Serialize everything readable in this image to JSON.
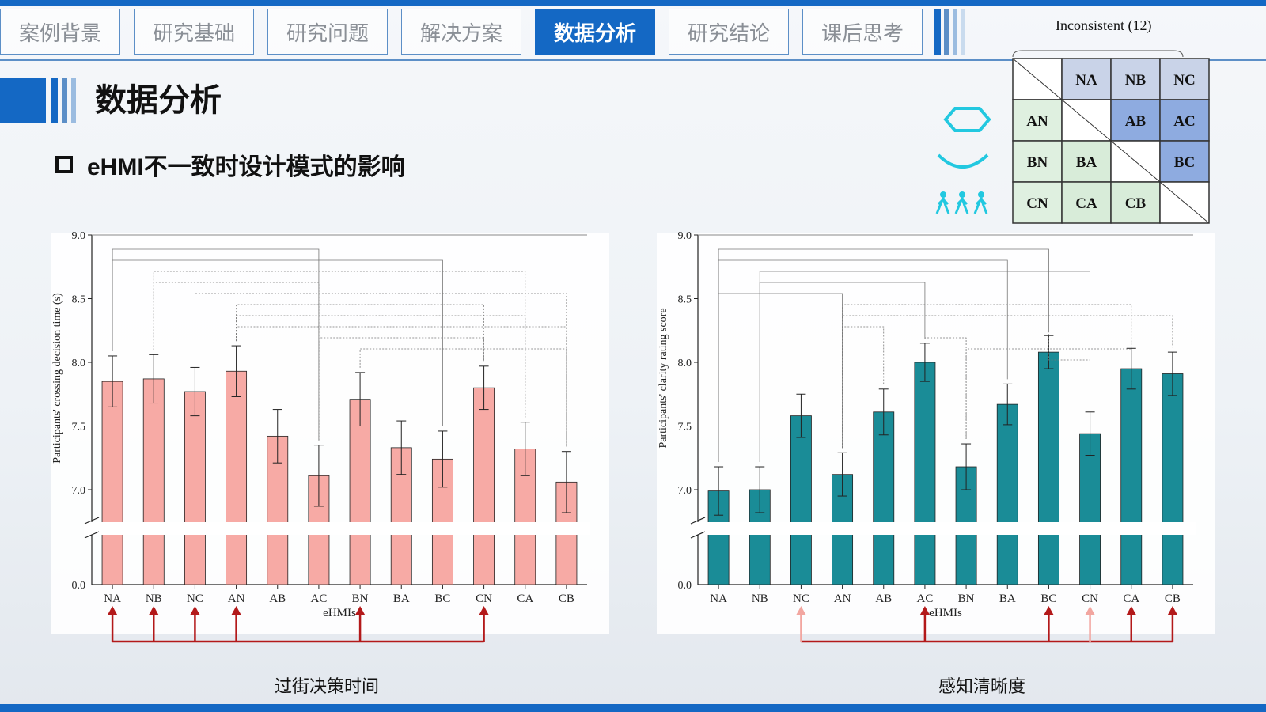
{
  "nav": {
    "tabs": [
      "案例背景",
      "研究基础",
      "研究问题",
      "解决方案",
      "数据分析",
      "研究结论",
      "课后思考"
    ],
    "active_index": 4
  },
  "page": {
    "title": "数据分析",
    "subtitle": "eHMI不一致时设计模式的影响"
  },
  "matrix": {
    "title": "Inconsistent",
    "count": "(12)",
    "col_headers": [
      "NA",
      "NB",
      "NC"
    ],
    "rows": [
      {
        "icon": "hexagon-icon",
        "label": "AN",
        "cells": [
          "",
          "AB",
          "AC"
        ]
      },
      {
        "icon": "smile-arc-icon",
        "label": "BN",
        "cells": [
          "BA",
          "",
          "BC"
        ]
      },
      {
        "icon": "pedestrians-icon",
        "label": "CN",
        "cells": [
          "CA",
          "CB",
          ""
        ]
      }
    ],
    "colors": {
      "header": "#c9d3e8",
      "lower": "#d8ecd9",
      "upper": "#8eabe0",
      "row_header": "#dff0e0"
    }
  },
  "chart_data": [
    {
      "type": "bar",
      "categories": [
        "NA",
        "NB",
        "NC",
        "AN",
        "AB",
        "AC",
        "BN",
        "BA",
        "BC",
        "CN",
        "CA",
        "CB"
      ],
      "values": [
        7.85,
        7.87,
        7.77,
        7.93,
        7.42,
        7.11,
        7.71,
        7.33,
        7.24,
        7.8,
        7.32,
        7.06
      ],
      "errors": [
        0.2,
        0.19,
        0.19,
        0.2,
        0.21,
        0.24,
        0.21,
        0.21,
        0.22,
        0.17,
        0.21,
        0.24
      ],
      "xlabel": "eHMIs",
      "ylabel": "Participants' crossing decision time (s)",
      "ylim": [
        6.7,
        9.0
      ],
      "axis_break": true,
      "yticks": [
        "0.0",
        "7.0",
        "7.5",
        "8.0",
        "8.5",
        "9.0"
      ],
      "color": "#f7aaa5",
      "highlighted": [
        "NA",
        "NB",
        "NC",
        "AN",
        "BN",
        "CN"
      ],
      "caption": "过街决策时间"
    },
    {
      "type": "bar",
      "categories": [
        "NA",
        "NB",
        "NC",
        "AN",
        "AB",
        "AC",
        "BN",
        "BA",
        "BC",
        "CN",
        "CA",
        "CB"
      ],
      "values": [
        6.99,
        7.0,
        7.58,
        7.12,
        7.61,
        8.0,
        7.18,
        7.67,
        8.08,
        7.44,
        7.95,
        7.91
      ],
      "errors": [
        0.19,
        0.18,
        0.17,
        0.17,
        0.18,
        0.15,
        0.18,
        0.16,
        0.13,
        0.17,
        0.16,
        0.17
      ],
      "xlabel": "eHMIs",
      "ylabel": "Participants' clarity rating score",
      "ylim": [
        6.7,
        9.0
      ],
      "axis_break": true,
      "yticks": [
        "0.0",
        "7.0",
        "7.5",
        "8.0",
        "8.5",
        "9.0"
      ],
      "color": "#1a8c97",
      "highlighted_strong": [
        "AC",
        "BC",
        "CA",
        "CB"
      ],
      "highlighted_weak": [
        "NC",
        "CN"
      ],
      "caption": "感知清晰度"
    }
  ]
}
